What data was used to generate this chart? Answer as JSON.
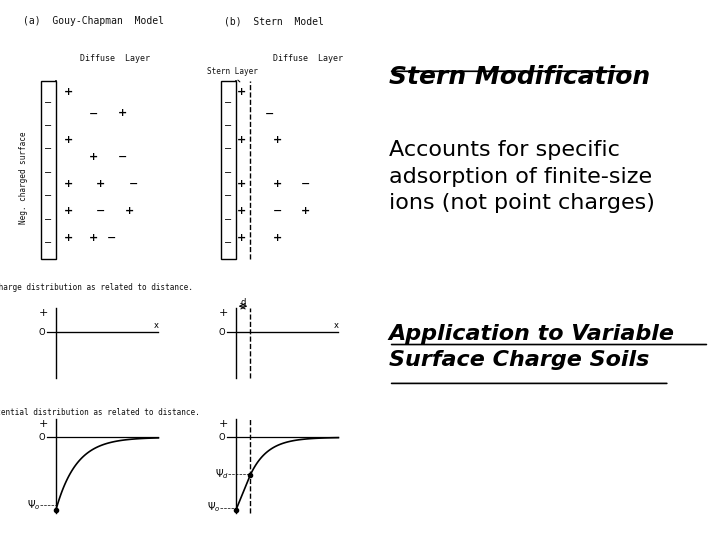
{
  "title": "Stern Modification",
  "body_text": "Accounts for specific\nadsorption of finite-size\nions (not point charges)",
  "application_text": "Application to Variable\nSurface Charge Soils",
  "background_color": "#ffffff",
  "title_color": "#000000",
  "body_color": "#000000",
  "application_color": "#000000",
  "title_fontsize": 18,
  "body_fontsize": 16,
  "application_fontsize": 16
}
